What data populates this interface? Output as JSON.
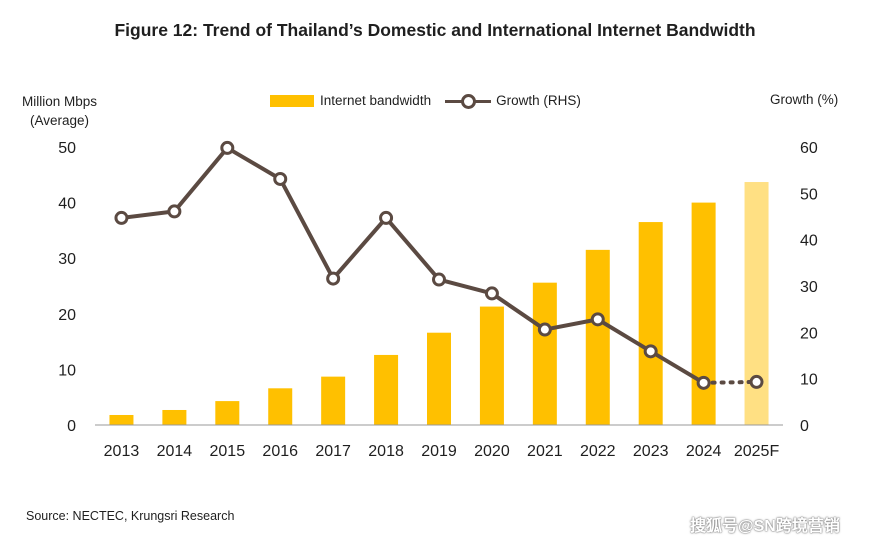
{
  "title": "Figure 12: Trend of Thailand’s Domestic and International Internet Bandwidth",
  "source": "Source: NECTEC, Krungsri Research",
  "watermark": "搜狐号@SN跨境营销",
  "colors": {
    "bar": "#FFC000",
    "bar_forecast": "#FFE083",
    "line": "#5b4a42",
    "axis": "#999999"
  },
  "chart_data": {
    "type": "bar",
    "categories": [
      "2013",
      "2014",
      "2015",
      "2016",
      "2017",
      "2018",
      "2019",
      "2020",
      "2021",
      "2022",
      "2023",
      "2024",
      "2025F"
    ],
    "series": [
      {
        "name": "Internet bandwidth",
        "type": "bar",
        "axis": "left",
        "values": [
          1.8,
          2.7,
          4.3,
          6.6,
          8.7,
          12.6,
          16.6,
          21.3,
          25.6,
          31.5,
          36.5,
          40.0,
          43.7
        ],
        "forecast_from_index": 12
      },
      {
        "name": "Growth (RHS)",
        "type": "line",
        "axis": "right",
        "values": [
          44.7,
          46.1,
          59.8,
          53.1,
          31.6,
          44.7,
          31.4,
          28.4,
          20.6,
          22.8,
          15.9,
          9.1,
          9.3
        ],
        "forecast_from_index": 11
      }
    ],
    "ylabel_left": [
      "Million Mbps",
      "(Average)"
    ],
    "ylabel_right": "Growth (%)",
    "ylim_left": [
      0,
      50
    ],
    "ylim_right": [
      0,
      60
    ],
    "yticks_left": [
      0,
      10,
      20,
      30,
      40,
      50
    ],
    "yticks_right": [
      0,
      10,
      20,
      30,
      40,
      50,
      60
    ],
    "legend_position": "top",
    "grid": false
  }
}
